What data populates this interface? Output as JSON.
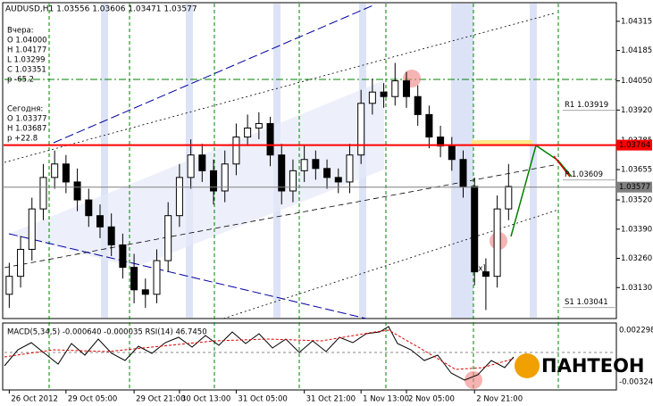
{
  "chart_data": {
    "type": "candlestick",
    "title": "AUDUSD,H1  1.03556 1.03606 1.03471 1.03577",
    "info_lines": [
      "Вчера:",
      "O 1.04000",
      "H 1.04177",
      "L 1.03299",
      "C 1.03351",
      "p -65.2",
      "Сегодня:",
      "O 1.03377",
      "H 1.03687",
      "p +22.8"
    ],
    "open": [
      1.031,
      1.0318,
      1.033,
      1.0348,
      1.0362,
      1.0368,
      1.036,
      1.0352,
      1.0345,
      1.034,
      1.0332,
      1.0322,
      1.0312,
      1.031,
      1.0325,
      1.0345,
      1.0362,
      1.0372,
      1.0365,
      1.0356,
      1.0368,
      1.038,
      1.0384,
      1.0386,
      1.0372,
      1.0356,
      1.0365,
      1.037,
      1.0366,
      1.0362,
      1.036,
      1.0372,
      1.0395,
      1.04,
      1.0398,
      1.0405,
      1.0398,
      1.039,
      1.038,
      1.0376,
      1.037,
      1.0358,
      1.032,
      1.0318,
      1.0348
    ],
    "high": [
      1.0324,
      1.0336,
      1.0353,
      1.0368,
      1.0374,
      1.0372,
      1.0366,
      1.0357,
      1.035,
      1.0346,
      1.0337,
      1.0328,
      1.0317,
      1.033,
      1.0351,
      1.0368,
      1.0379,
      1.0377,
      1.037,
      1.0374,
      1.0386,
      1.039,
      1.0391,
      1.0389,
      1.0377,
      1.037,
      1.0376,
      1.0374,
      1.037,
      1.0366,
      1.0377,
      1.0401,
      1.0406,
      1.0404,
      1.0413,
      1.0409,
      1.0403,
      1.0394,
      1.0385,
      1.038,
      1.0374,
      1.0362,
      1.0326,
      1.0354,
      1.0368
    ],
    "low": [
      1.0304,
      1.0313,
      1.0325,
      1.0343,
      1.0357,
      1.0355,
      1.0347,
      1.034,
      1.0335,
      1.0327,
      1.0317,
      1.0306,
      1.0304,
      1.0306,
      1.032,
      1.034,
      1.0357,
      1.036,
      1.035,
      1.0351,
      1.0363,
      1.0376,
      1.0379,
      1.0367,
      1.035,
      1.0351,
      1.036,
      1.0361,
      1.0357,
      1.0355,
      1.0355,
      1.0368,
      1.039,
      1.0393,
      1.0394,
      1.0393,
      1.0385,
      1.0375,
      1.0371,
      1.0365,
      1.0353,
      1.0314,
      1.0303,
      1.0313,
      1.0343
    ],
    "close": [
      1.0318,
      1.033,
      1.0348,
      1.0362,
      1.0368,
      1.036,
      1.0352,
      1.0345,
      1.034,
      1.0332,
      1.0322,
      1.0312,
      1.031,
      1.0325,
      1.0345,
      1.0362,
      1.0372,
      1.0365,
      1.0356,
      1.0368,
      1.038,
      1.0384,
      1.0386,
      1.0372,
      1.0356,
      1.0365,
      1.037,
      1.0366,
      1.0362,
      1.036,
      1.0372,
      1.0395,
      1.04,
      1.0398,
      1.0405,
      1.0398,
      1.039,
      1.038,
      1.0376,
      1.037,
      1.0358,
      1.032,
      1.0318,
      1.0348,
      1.0358
    ],
    "up_color": "#ffffff",
    "down_color": "#000000",
    "xlim": [
      -0.5,
      53.5
    ],
    "xticks": [
      {
        "value": 0,
        "label": "26 Oct 2012"
      },
      {
        "value": 5,
        "label": "29 Oct 05:00"
      },
      {
        "value": 11,
        "label": "29 Oct 21:00"
      },
      {
        "value": 15,
        "label": "30 Oct 13:00"
      },
      {
        "value": 20,
        "label": "31 Oct 05:00"
      },
      {
        "value": 26,
        "label": "31 Oct 21:00"
      },
      {
        "value": 31,
        "label": "1 Nov 13:00"
      },
      {
        "value": 35,
        "label": "2 Nov 05:00"
      },
      {
        "value": 41,
        "label": "2 Nov 21:00"
      }
    ],
    "ylim": [
      1.03,
      1.0439
    ],
    "yticks": [
      1.04315,
      1.04185,
      {
        "value": 1.0405,
        "label": "1.04050"
      },
      {
        "value": 1.0392,
        "label": "1.03920"
      },
      1.03785,
      1.03655,
      {
        "value": 1.0352,
        "label": "1.03520"
      },
      {
        "value": 1.0339,
        "label": "1.03390"
      },
      {
        "value": 1.0326,
        "label": "1.03260"
      },
      {
        "value": 1.0313,
        "label": "1.03130"
      }
    ],
    "price_tags": [
      {
        "value": 1.03764,
        "color": "#ff0000"
      },
      {
        "value": 1.03577,
        "color": "#808080"
      }
    ],
    "pivot_levels": [
      {
        "value": 1.03919,
        "label": "R1 1.03919"
      },
      {
        "value": 1.03609,
        "label": "P 1.03609"
      },
      {
        "value": 1.03041,
        "label": "S1 1.03041"
      }
    ],
    "indicator_label": "MACD(5,34,5) -0.000640 -0.000035  RSI(14) 46.7450",
    "indicator_axis": [
      "0.002298",
      "-0.00324"
    ],
    "marker_text": "[x]",
    "logo": "ПАНТЕОН"
  }
}
